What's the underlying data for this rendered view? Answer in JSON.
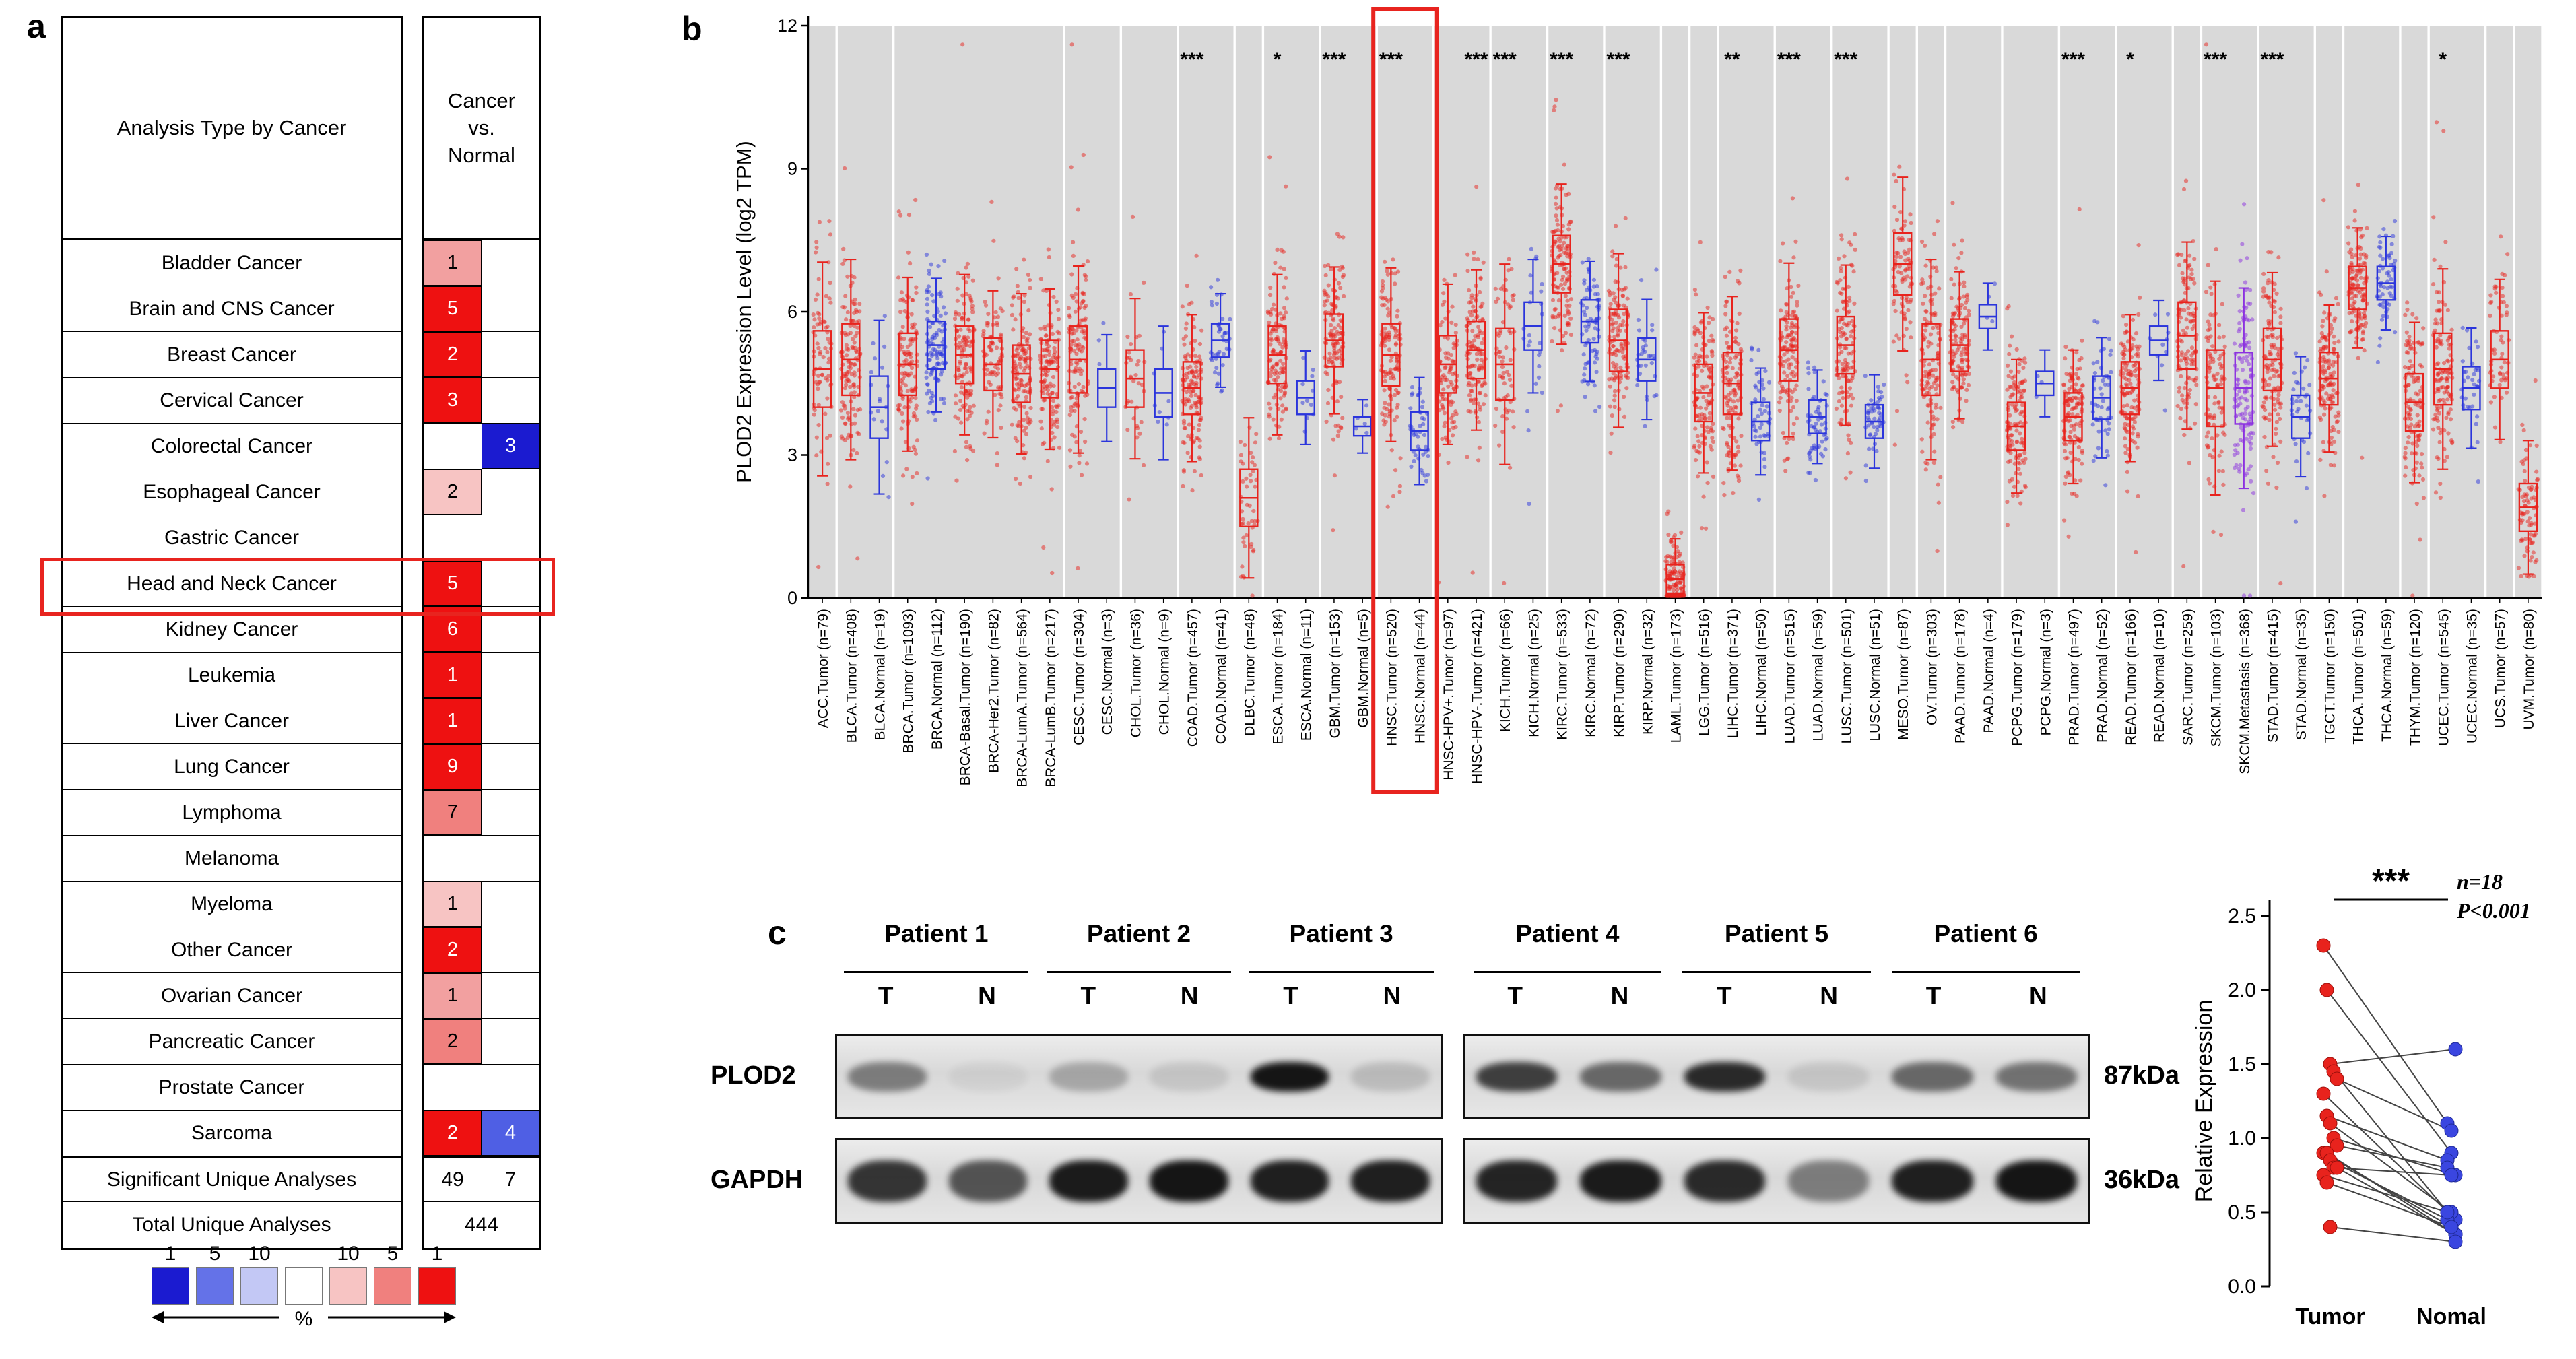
{
  "panels": {
    "a_label": "a",
    "b_label": "b",
    "c_label": "c"
  },
  "panel_a": {
    "header_col1": "Analysis Type by Cancer",
    "header_col2": "Cancer\nvs.\nNormal",
    "rows": [
      {
        "label": "Bladder Cancer",
        "c1": {
          "v": "1",
          "bg": "#F2A0A0",
          "fg": "#000000"
        },
        "c2": null
      },
      {
        "label": "Brain and CNS Cancer",
        "c1": {
          "v": "5",
          "bg": "#EE1111",
          "fg": "#FFFFFF"
        },
        "c2": null
      },
      {
        "label": "Breast Cancer",
        "c1": {
          "v": "2",
          "bg": "#EE1111",
          "fg": "#FFFFFF"
        },
        "c2": null
      },
      {
        "label": "Cervical Cancer",
        "c1": {
          "v": "3",
          "bg": "#EE1111",
          "fg": "#FFFFFF"
        },
        "c2": null
      },
      {
        "label": "Colorectal Cancer",
        "c1": null,
        "c2": {
          "v": "3",
          "bg": "#1B1BD0",
          "fg": "#FFFFFF"
        }
      },
      {
        "label": "Esophageal Cancer",
        "c1": {
          "v": "2",
          "bg": "#F7C4C3",
          "fg": "#000000"
        },
        "c2": null
      },
      {
        "label": "Gastric Cancer",
        "c1": null,
        "c2": null
      },
      {
        "label": "Head and Neck Cancer",
        "c1": {
          "v": "5",
          "bg": "#EE1111",
          "fg": "#FFFFFF"
        },
        "c2": null
      },
      {
        "label": "Kidney Cancer",
        "c1": {
          "v": "6",
          "bg": "#EE1111",
          "fg": "#FFFFFF"
        },
        "c2": null
      },
      {
        "label": "Leukemia",
        "c1": {
          "v": "1",
          "bg": "#EE1111",
          "fg": "#FFFFFF"
        },
        "c2": null
      },
      {
        "label": "Liver Cancer",
        "c1": {
          "v": "1",
          "bg": "#EE1111",
          "fg": "#FFFFFF"
        },
        "c2": null
      },
      {
        "label": "Lung Cancer",
        "c1": {
          "v": "9",
          "bg": "#EE1111",
          "fg": "#FFFFFF"
        },
        "c2": null
      },
      {
        "label": "Lymphoma",
        "c1": {
          "v": "7",
          "bg": "#F0807E",
          "fg": "#000000"
        },
        "c2": null
      },
      {
        "label": "Melanoma",
        "c1": null,
        "c2": null
      },
      {
        "label": "Myeloma",
        "c1": {
          "v": "1",
          "bg": "#F7C4C3",
          "fg": "#000000"
        },
        "c2": null
      },
      {
        "label": "Other Cancer",
        "c1": {
          "v": "2",
          "bg": "#EE1111",
          "fg": "#FFFFFF"
        },
        "c2": null
      },
      {
        "label": "Ovarian Cancer",
        "c1": {
          "v": "1",
          "bg": "#F2A0A0",
          "fg": "#000000"
        },
        "c2": null
      },
      {
        "label": "Pancreatic Cancer",
        "c1": {
          "v": "2",
          "bg": "#F0807E",
          "fg": "#000000"
        },
        "c2": null
      },
      {
        "label": "Prostate Cancer",
        "c1": null,
        "c2": null
      },
      {
        "label": "Sarcoma",
        "c1": {
          "v": "2",
          "bg": "#EE1111",
          "fg": "#FFFFFF"
        },
        "c2": {
          "v": "4",
          "bg": "#4F5FE4",
          "fg": "#FFFFFF"
        }
      }
    ],
    "summary_rows": [
      {
        "label": "Significant Unique Analyses",
        "left": "49",
        "right": "7"
      },
      {
        "label": "Total Unique Analyses",
        "center": "444"
      }
    ],
    "highlight_row": "Head and Neck Cancer",
    "legend": {
      "top_labels": [
        "1",
        "5",
        "10",
        "",
        "10",
        "5",
        "1"
      ],
      "colors": [
        "#1B1BD0",
        "#6472E8",
        "#C3C8F5",
        "#FFFFFF",
        "#F7C4C3",
        "#F0807E",
        "#EE1111"
      ],
      "axis_label": "%"
    }
  },
  "panel_c": {
    "patients": [
      "Patient 1",
      "Patient 2",
      "Patient 3",
      "Patient 4",
      "Patient 5",
      "Patient 6"
    ],
    "lane_labels": [
      "T",
      "N"
    ],
    "blot_rows": [
      {
        "name": "PLOD2",
        "kda": "87kDa",
        "intensities": [
          0.45,
          0.05,
          0.25,
          0.1,
          0.95,
          0.15,
          0.75,
          0.55,
          0.85,
          0.1,
          0.55,
          0.5
        ]
      },
      {
        "name": "GAPDH",
        "kda": "36kDa",
        "intensities": [
          0.8,
          0.65,
          0.92,
          0.95,
          0.9,
          0.9,
          0.88,
          0.92,
          0.85,
          0.45,
          0.9,
          0.95
        ]
      }
    ],
    "stats": {
      "n": "n=18",
      "p": "P<0.001",
      "sig": "***"
    }
  },
  "chart_data": [
    {
      "type": "boxplot",
      "title": "PLOD2 expression across TCGA cancers (TIMER)",
      "ylabel": "PLOD2 Expression Level (log2 TPM)",
      "ylim": [
        0,
        12
      ],
      "yticks": [
        0,
        3,
        6,
        9,
        12
      ],
      "legend_colors": {
        "tumor": "#E8231D",
        "normal": "#2B35DC",
        "metastasis": "#8B30E0"
      },
      "highlighted": [
        "HNSC.Tumor (n=520)",
        "HNSC.Normal (n=44)"
      ],
      "categories": [
        {
          "label": "ACC.Tumor (n=79)",
          "n": 79,
          "type": "tumor",
          "g": 0,
          "median": 4.8,
          "iqr": 1.6,
          "sig": ""
        },
        {
          "label": "BLCA.Tumor (n=408)",
          "n": 408,
          "type": "tumor",
          "g": 1,
          "median": 5.0,
          "iqr": 1.5,
          "sig": ""
        },
        {
          "label": "BLCA.Normal (n=19)",
          "n": 19,
          "type": "normal",
          "g": 1,
          "median": 4.0,
          "iqr": 1.3,
          "sig": ""
        },
        {
          "label": "BRCA.Tumor (n=1093)",
          "n": 1093,
          "type": "tumor",
          "g": 2,
          "median": 4.9,
          "iqr": 1.3,
          "sig": ""
        },
        {
          "label": "BRCA.Normal (n=112)",
          "n": 112,
          "type": "normal",
          "g": 2,
          "median": 5.3,
          "iqr": 1.0,
          "sig": ""
        },
        {
          "label": "BRCA-Basal.Tumor (n=190)",
          "n": 190,
          "type": "tumor",
          "g": 2,
          "median": 5.1,
          "iqr": 1.2,
          "sig": ""
        },
        {
          "label": "BRCA-Her2.Tumor (n=82)",
          "n": 82,
          "type": "tumor",
          "g": 2,
          "median": 4.9,
          "iqr": 1.1,
          "sig": ""
        },
        {
          "label": "BRCA-LumA.Tumor (n=564)",
          "n": 564,
          "type": "tumor",
          "g": 2,
          "median": 4.7,
          "iqr": 1.2,
          "sig": ""
        },
        {
          "label": "BRCA-LumB.Tumor (n=217)",
          "n": 217,
          "type": "tumor",
          "g": 2,
          "median": 4.8,
          "iqr": 1.2,
          "sig": ""
        },
        {
          "label": "CESC.Tumor (n=304)",
          "n": 304,
          "type": "tumor",
          "g": 3,
          "median": 5.0,
          "iqr": 1.4,
          "sig": ""
        },
        {
          "label": "CESC.Normal (n=3)",
          "n": 3,
          "type": "normal",
          "g": 3,
          "median": 4.4,
          "iqr": 0.8,
          "sig": ""
        },
        {
          "label": "CHOL.Tumor (n=36)",
          "n": 36,
          "type": "tumor",
          "g": 4,
          "median": 4.6,
          "iqr": 1.2,
          "sig": ""
        },
        {
          "label": "CHOL.Normal (n=9)",
          "n": 9,
          "type": "normal",
          "g": 4,
          "median": 4.3,
          "iqr": 1.0,
          "sig": ""
        },
        {
          "label": "COAD.Tumor (n=457)",
          "n": 457,
          "type": "tumor",
          "g": 5,
          "median": 4.4,
          "iqr": 1.1,
          "sig": "***"
        },
        {
          "label": "COAD.Normal (n=41)",
          "n": 41,
          "type": "normal",
          "g": 5,
          "median": 5.4,
          "iqr": 0.7,
          "sig": ""
        },
        {
          "label": "DLBC.Tumor (n=48)",
          "n": 48,
          "type": "tumor",
          "g": 6,
          "median": 2.1,
          "iqr": 1.2,
          "sig": ""
        },
        {
          "label": "ESCA.Tumor (n=184)",
          "n": 184,
          "type": "tumor",
          "g": 7,
          "median": 5.1,
          "iqr": 1.2,
          "sig": "*"
        },
        {
          "label": "ESCA.Normal (n=11)",
          "n": 11,
          "type": "normal",
          "g": 7,
          "median": 4.2,
          "iqr": 0.7,
          "sig": ""
        },
        {
          "label": "GBM.Tumor (n=153)",
          "n": 153,
          "type": "tumor",
          "g": 8,
          "median": 5.4,
          "iqr": 1.1,
          "sig": "***"
        },
        {
          "label": "GBM.Normal (n=5)",
          "n": 5,
          "type": "normal",
          "g": 8,
          "median": 3.6,
          "iqr": 0.4,
          "sig": ""
        },
        {
          "label": "HNSC.Tumor (n=520)",
          "n": 520,
          "type": "tumor",
          "g": 9,
          "median": 5.1,
          "iqr": 1.3,
          "sig": "***"
        },
        {
          "label": "HNSC.Normal (n=44)",
          "n": 44,
          "type": "normal",
          "g": 9,
          "median": 3.5,
          "iqr": 0.8,
          "sig": ""
        },
        {
          "label": "HNSC-HPV+.Tumor (n=97)",
          "n": 97,
          "type": "tumor",
          "g": 10,
          "median": 4.9,
          "iqr": 1.2,
          "sig": ""
        },
        {
          "label": "HNSC-HPV-.Tumor (n=421)",
          "n": 421,
          "type": "tumor",
          "g": 10,
          "median": 5.2,
          "iqr": 1.2,
          "sig": "***"
        },
        {
          "label": "KICH.Tumor (n=66)",
          "n": 66,
          "type": "tumor",
          "g": 11,
          "median": 4.9,
          "iqr": 1.5,
          "sig": "***"
        },
        {
          "label": "KICH.Normal (n=25)",
          "n": 25,
          "type": "normal",
          "g": 11,
          "median": 5.7,
          "iqr": 1.0,
          "sig": ""
        },
        {
          "label": "KIRC.Tumor (n=533)",
          "n": 533,
          "type": "tumor",
          "g": 12,
          "median": 7.0,
          "iqr": 1.2,
          "sig": "***"
        },
        {
          "label": "KIRC.Normal (n=72)",
          "n": 72,
          "type": "normal",
          "g": 12,
          "median": 5.8,
          "iqr": 0.9,
          "sig": ""
        },
        {
          "label": "KIRP.Tumor (n=290)",
          "n": 290,
          "type": "tumor",
          "g": 13,
          "median": 5.4,
          "iqr": 1.3,
          "sig": "***"
        },
        {
          "label": "KIRP.Normal (n=32)",
          "n": 32,
          "type": "normal",
          "g": 13,
          "median": 5.0,
          "iqr": 0.9,
          "sig": ""
        },
        {
          "label": "LAML.Tumor (n=173)",
          "n": 173,
          "type": "tumor",
          "g": 14,
          "median": 0.4,
          "iqr": 0.6,
          "sig": ""
        },
        {
          "label": "LGG.Tumor (n=516)",
          "n": 516,
          "type": "tumor",
          "g": 15,
          "median": 4.3,
          "iqr": 1.2,
          "sig": ""
        },
        {
          "label": "LIHC.Tumor (n=371)",
          "n": 371,
          "type": "tumor",
          "g": 16,
          "median": 4.5,
          "iqr": 1.3,
          "sig": "**"
        },
        {
          "label": "LIHC.Normal (n=50)",
          "n": 50,
          "type": "normal",
          "g": 16,
          "median": 3.7,
          "iqr": 0.8,
          "sig": ""
        },
        {
          "label": "LUAD.Tumor (n=515)",
          "n": 515,
          "type": "tumor",
          "g": 17,
          "median": 5.2,
          "iqr": 1.3,
          "sig": "***"
        },
        {
          "label": "LUAD.Normal (n=59)",
          "n": 59,
          "type": "normal",
          "g": 17,
          "median": 3.8,
          "iqr": 0.7,
          "sig": ""
        },
        {
          "label": "LUSC.Tumor (n=501)",
          "n": 501,
          "type": "tumor",
          "g": 18,
          "median": 5.3,
          "iqr": 1.2,
          "sig": "***"
        },
        {
          "label": "LUSC.Normal (n=51)",
          "n": 51,
          "type": "normal",
          "g": 18,
          "median": 3.7,
          "iqr": 0.7,
          "sig": ""
        },
        {
          "label": "MESO.Tumor (n=87)",
          "n": 87,
          "type": "tumor",
          "g": 19,
          "median": 7.0,
          "iqr": 1.3,
          "sig": ""
        },
        {
          "label": "OV.Tumor (n=303)",
          "n": 303,
          "type": "tumor",
          "g": 20,
          "median": 5.0,
          "iqr": 1.5,
          "sig": ""
        },
        {
          "label": "PAAD.Tumor (n=178)",
          "n": 178,
          "type": "tumor",
          "g": 21,
          "median": 5.3,
          "iqr": 1.1,
          "sig": ""
        },
        {
          "label": "PAAD.Normal (n=4)",
          "n": 4,
          "type": "normal",
          "g": 21,
          "median": 5.9,
          "iqr": 0.5,
          "sig": ""
        },
        {
          "label": "PCPG.Tumor (n=179)",
          "n": 179,
          "type": "tumor",
          "g": 22,
          "median": 3.6,
          "iqr": 1.0,
          "sig": ""
        },
        {
          "label": "PCPG.Normal (n=3)",
          "n": 3,
          "type": "normal",
          "g": 22,
          "median": 4.5,
          "iqr": 0.5,
          "sig": ""
        },
        {
          "label": "PRAD.Tumor (n=497)",
          "n": 497,
          "type": "tumor",
          "g": 23,
          "median": 3.8,
          "iqr": 1.0,
          "sig": "***"
        },
        {
          "label": "PRAD.Normal (n=52)",
          "n": 52,
          "type": "normal",
          "g": 23,
          "median": 4.2,
          "iqr": 0.9,
          "sig": ""
        },
        {
          "label": "READ.Tumor (n=166)",
          "n": 166,
          "type": "tumor",
          "g": 24,
          "median": 4.4,
          "iqr": 1.1,
          "sig": "*"
        },
        {
          "label": "READ.Normal (n=10)",
          "n": 10,
          "type": "normal",
          "g": 24,
          "median": 5.4,
          "iqr": 0.6,
          "sig": ""
        },
        {
          "label": "SARC.Tumor (n=259)",
          "n": 259,
          "type": "tumor",
          "g": 25,
          "median": 5.5,
          "iqr": 1.4,
          "sig": ""
        },
        {
          "label": "SKCM.Tumor (n=103)",
          "n": 103,
          "type": "tumor",
          "g": 26,
          "median": 4.4,
          "iqr": 1.6,
          "sig": "***"
        },
        {
          "label": "SKCM.Metastasis (n=368)",
          "n": 368,
          "type": "metastasis",
          "g": 26,
          "median": 4.4,
          "iqr": 1.5,
          "sig": ""
        },
        {
          "label": "STAD.Tumor (n=415)",
          "n": 415,
          "type": "tumor",
          "g": 27,
          "median": 5.0,
          "iqr": 1.3,
          "sig": "***"
        },
        {
          "label": "STAD.Normal (n=35)",
          "n": 35,
          "type": "normal",
          "g": 27,
          "median": 3.8,
          "iqr": 0.9,
          "sig": ""
        },
        {
          "label": "TGCT.Tumor (n=150)",
          "n": 150,
          "type": "tumor",
          "g": 28,
          "median": 4.6,
          "iqr": 1.1,
          "sig": ""
        },
        {
          "label": "THCA.Tumor (n=501)",
          "n": 501,
          "type": "tumor",
          "g": 29,
          "median": 6.5,
          "iqr": 0.9,
          "sig": ""
        },
        {
          "label": "THCA.Normal (n=59)",
          "n": 59,
          "type": "normal",
          "g": 29,
          "median": 6.6,
          "iqr": 0.7,
          "sig": ""
        },
        {
          "label": "THYM.Tumor (n=120)",
          "n": 120,
          "type": "tumor",
          "g": 30,
          "median": 4.1,
          "iqr": 1.2,
          "sig": ""
        },
        {
          "label": "UCEC.Tumor (n=545)",
          "n": 545,
          "type": "tumor",
          "g": 31,
          "median": 4.8,
          "iqr": 1.5,
          "sig": "*"
        },
        {
          "label": "UCEC.Normal (n=35)",
          "n": 35,
          "type": "normal",
          "g": 31,
          "median": 4.4,
          "iqr": 0.9,
          "sig": ""
        },
        {
          "label": "UCS.Tumor (n=57)",
          "n": 57,
          "type": "tumor",
          "g": 32,
          "median": 5.0,
          "iqr": 1.2,
          "sig": ""
        },
        {
          "label": "UVM.Tumor (n=80)",
          "n": 80,
          "type": "tumor",
          "g": 33,
          "median": 1.9,
          "iqr": 1.0,
          "sig": ""
        }
      ]
    },
    {
      "type": "scatter",
      "title": "Paired tumor vs normal PLOD2 relative expression",
      "ylabel": "Relative Expression",
      "ylim": [
        0,
        2.5
      ],
      "yticks": [
        0,
        0.5,
        1.0,
        1.5,
        2.0,
        2.5
      ],
      "categories": [
        "Tumor",
        "Nomal"
      ],
      "significance": "***",
      "annotation_lines": [
        "n=18",
        "P<0.001"
      ],
      "colors": {
        "tumor": "#E8231D",
        "normal": "#3A46E0"
      },
      "pairs": [
        [
          2.3,
          1.1
        ],
        [
          2.0,
          0.9
        ],
        [
          1.5,
          1.6
        ],
        [
          1.45,
          0.5
        ],
        [
          1.4,
          1.05
        ],
        [
          1.3,
          0.45
        ],
        [
          1.15,
          0.85
        ],
        [
          1.1,
          0.5
        ],
        [
          1.0,
          0.75
        ],
        [
          0.95,
          0.8
        ],
        [
          0.9,
          0.4
        ],
        [
          0.9,
          0.35
        ],
        [
          0.85,
          0.45
        ],
        [
          0.8,
          0.75
        ],
        [
          0.8,
          0.35
        ],
        [
          0.75,
          0.5
        ],
        [
          0.7,
          0.4
        ],
        [
          0.4,
          0.3
        ]
      ]
    }
  ]
}
